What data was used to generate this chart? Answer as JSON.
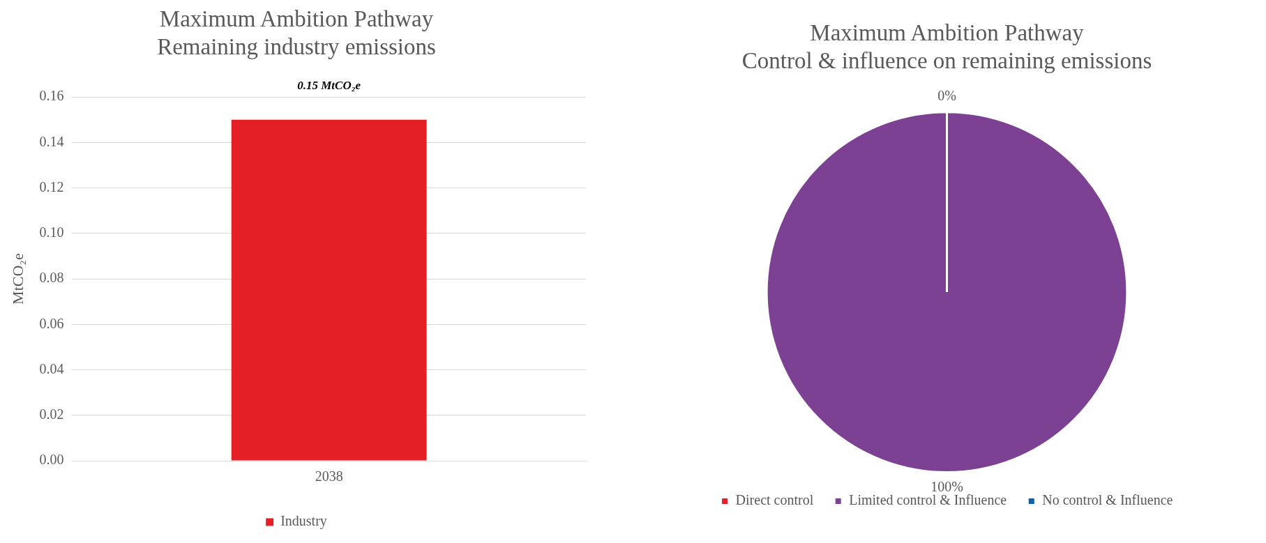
{
  "chart_data": [
    {
      "type": "bar",
      "title": "Maximum Ambition Pathway\nRemaining industry emissions",
      "ylabel": "MtCO₂e",
      "categories": [
        "2038"
      ],
      "series": [
        {
          "name": "Industry",
          "color": "#e41f26",
          "values": [
            0.15
          ]
        }
      ],
      "value_labels": [
        "0.15 MtCO₂e"
      ],
      "ylim": [
        0,
        0.16
      ],
      "yticks": [
        {
          "value": 0,
          "label": "0.00"
        },
        {
          "value": 0.02,
          "label": "0.02"
        },
        {
          "value": 0.04,
          "label": "0.04"
        },
        {
          "value": 0.06,
          "label": "0.06"
        },
        {
          "value": 0.08,
          "label": "0.08"
        },
        {
          "value": 0.1,
          "label": "0.10"
        },
        {
          "value": 0.12,
          "label": "0.12"
        },
        {
          "value": 0.14,
          "label": "0.14"
        },
        {
          "value": 0.16,
          "label": "0.16"
        }
      ],
      "grid": "y",
      "legend": "bottom"
    },
    {
      "type": "pie",
      "title": "Maximum Ambition Pathway\nControl & influence on remaining emissions",
      "categories": [
        "Direct control",
        "Limited control & Influence",
        "No control & Influence"
      ],
      "values": [
        0,
        100,
        0
      ],
      "colors": [
        "#e41f26",
        "#7d4194",
        "#0e5ea8"
      ],
      "value_labels": [
        "0%",
        "100%",
        null
      ],
      "legend": "bottom"
    }
  ]
}
